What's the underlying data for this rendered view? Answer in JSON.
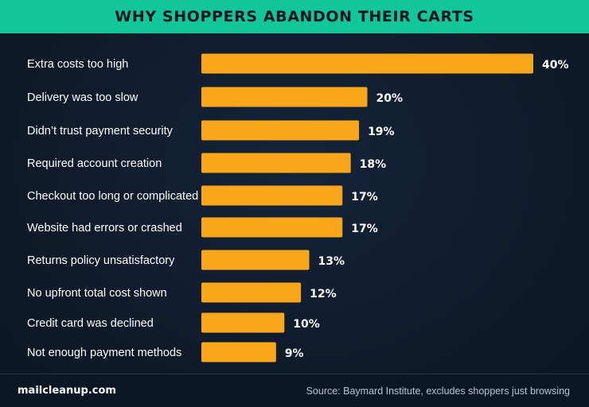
{
  "title": "WHY SHOPPERS ABANDON THEIR CARTS",
  "footer": {
    "brand": "mailcleanup.com",
    "source": "Source: Baymard Institute, excludes shoppers just browsing"
  },
  "colors": {
    "title_bar": "#11c79a",
    "background": "#0f1b2b",
    "bar": "#f9a61a",
    "label_text": "#ffffff",
    "value_text": "#ffffff",
    "source_text": "#b6c2cf"
  },
  "chart_data": {
    "type": "bar",
    "orientation": "horizontal",
    "title": "WHY SHOPPERS ABANDON THEIR CARTS",
    "categories": [
      "Extra costs too high",
      "Delivery was too slow",
      "Didn’t trust payment security",
      "Required account creation",
      "Checkout too long or complicated",
      "Website had errors or crashed",
      "Returns policy unsatisfactory",
      "No upfront total cost shown",
      "Credit card was declined",
      "Not enough payment methods"
    ],
    "values": [
      40,
      20,
      19,
      18,
      17,
      17,
      13,
      12,
      10,
      9
    ],
    "value_labels": [
      "40%",
      "20%",
      "19%",
      "18%",
      "17%",
      "17%",
      "13%",
      "12%",
      "10%",
      "9%"
    ],
    "value_unit": "%",
    "xlim": [
      0,
      40
    ],
    "grid": false,
    "legend": "none"
  }
}
